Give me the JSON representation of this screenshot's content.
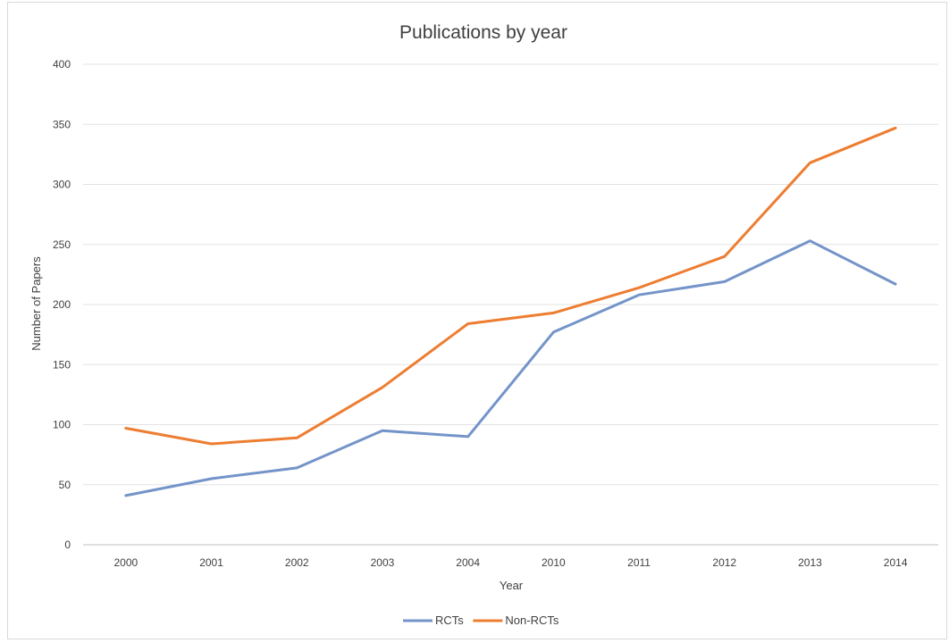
{
  "chart_data": {
    "type": "line",
    "title": "Publications by year",
    "xlabel": "Year",
    "ylabel": "Number of Papers",
    "categories": [
      "2000",
      "2001",
      "2002",
      "2003",
      "2004",
      "2010",
      "2011",
      "2012",
      "2013",
      "2014"
    ],
    "series": [
      {
        "name": "RCTs",
        "color": "#7494c9",
        "values": [
          41,
          55,
          64,
          95,
          90,
          177,
          208,
          219,
          253,
          217
        ]
      },
      {
        "name": "Non-RCTs",
        "color": "#ed7d31",
        "values": [
          97,
          84,
          89,
          131,
          184,
          193,
          214,
          240,
          318,
          347
        ]
      }
    ],
    "ylim": [
      0,
      400
    ],
    "yticks": [
      0,
      50,
      100,
      150,
      200,
      250,
      300,
      350,
      400
    ],
    "grid": true,
    "legend_position": "bottom"
  }
}
